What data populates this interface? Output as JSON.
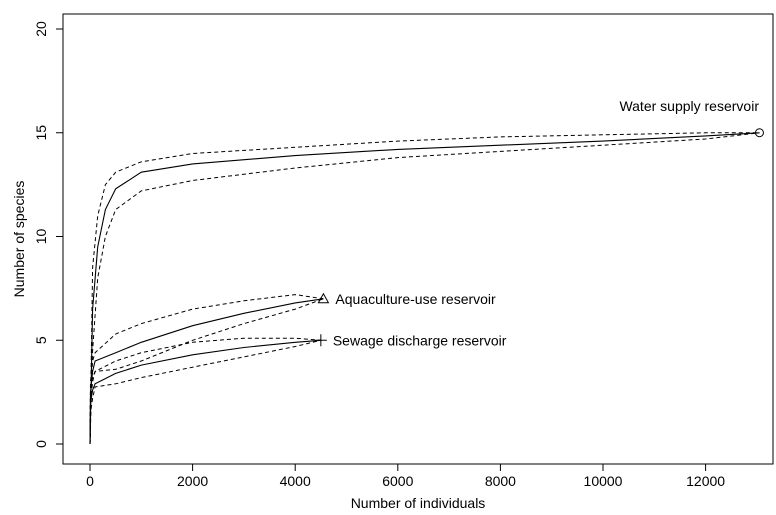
{
  "chart_data": {
    "type": "line",
    "title": "",
    "xlabel": "Number of individuals",
    "ylabel": "Number of species",
    "xlim": [
      0,
      13100
    ],
    "ylim": [
      0,
      20
    ],
    "x_ticks": [
      "0",
      "2000",
      "4000",
      "6000",
      "8000",
      "10000",
      "12000"
    ],
    "y_ticks": [
      "0",
      "5",
      "10",
      "15",
      "20"
    ],
    "grid": false,
    "legend": "none",
    "series": [
      {
        "name": "Water supply reservoir",
        "marker": "circle",
        "x": [
          0,
          50,
          150,
          300,
          500,
          1000,
          2000,
          4000,
          6000,
          8000,
          10000,
          12000,
          13050
        ],
        "y": [
          0,
          6.5,
          9.5,
          11.3,
          12.3,
          13.1,
          13.5,
          13.9,
          14.2,
          14.4,
          14.6,
          14.85,
          15
        ],
        "upper": [
          0,
          8.5,
          11.0,
          12.5,
          13.1,
          13.6,
          14.0,
          14.3,
          14.6,
          14.8,
          14.9,
          15.0,
          15
        ],
        "lower": [
          0,
          4.5,
          8.0,
          10.0,
          11.3,
          12.2,
          12.7,
          13.3,
          13.8,
          14.1,
          14.4,
          14.7,
          15
        ]
      },
      {
        "name": "Aquaculture-use reservoir",
        "marker": "triangle",
        "x": [
          0,
          10,
          50,
          100,
          500,
          1000,
          2000,
          3000,
          4000,
          4550
        ],
        "y": [
          0,
          2.5,
          3.5,
          4.0,
          4.4,
          4.9,
          5.7,
          6.3,
          6.8,
          7
        ],
        "upper": [
          0,
          3.0,
          4.0,
          4.4,
          5.3,
          5.8,
          6.5,
          6.9,
          7.2,
          7
        ],
        "lower": [
          0,
          2.0,
          3.0,
          3.5,
          3.6,
          4.0,
          5.0,
          5.8,
          6.5,
          7
        ]
      },
      {
        "name": "Sewage discharge reservoir",
        "marker": "plus",
        "x": [
          0,
          10,
          50,
          100,
          500,
          1000,
          2000,
          3000,
          4000,
          4500
        ],
        "y": [
          0,
          2.0,
          2.6,
          2.9,
          3.4,
          3.8,
          4.3,
          4.65,
          4.9,
          5
        ],
        "upper": [
          0,
          2.5,
          3.2,
          3.5,
          4.0,
          4.4,
          4.9,
          5.1,
          5.1,
          5
        ],
        "lower": [
          0,
          1.5,
          2.2,
          2.75,
          2.9,
          3.2,
          3.7,
          4.2,
          4.7,
          5
        ]
      }
    ]
  }
}
